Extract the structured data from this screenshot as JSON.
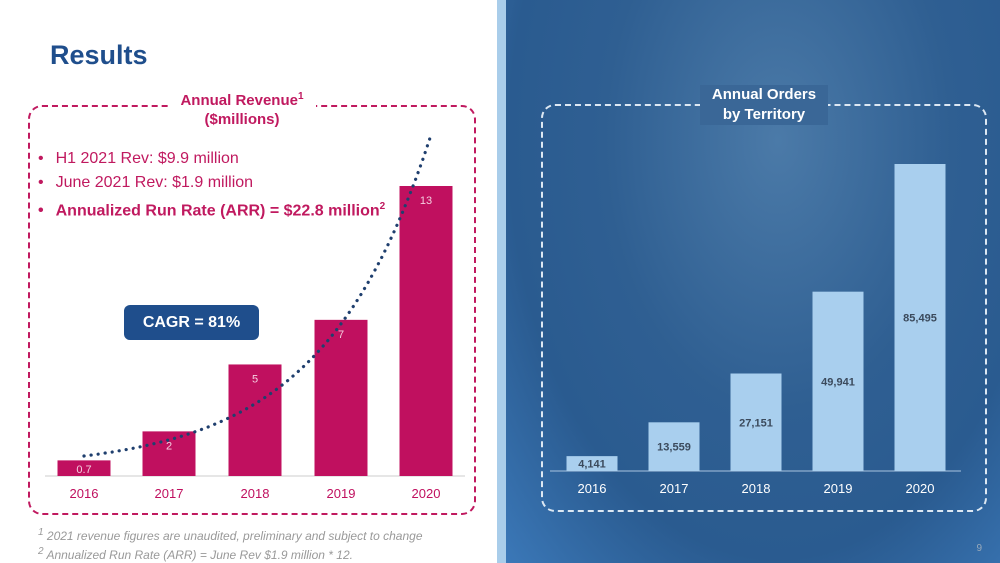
{
  "title": "Results",
  "page_number": "9",
  "revenue_box": {
    "title": "Annual Revenue",
    "title_sup": "1",
    "subtitle": "($millions)",
    "bullets": [
      "H1 2021 Rev: $9.9 million",
      "June 2021 Rev: $1.9 million"
    ],
    "bold_bullet": "Annualized Run Rate (ARR) = $22.8 million",
    "bold_bullet_sup": "2",
    "cagr": "CAGR = 81%"
  },
  "orders_box": {
    "title_line1": "Annual Orders",
    "title_line2": "by Territory"
  },
  "footnotes": [
    "2021 revenue figures are unaudited, preliminary and subject to change",
    "Annualized Run Rate (ARR) = June Rev $1.9 million * 12."
  ],
  "footnote_marks": [
    "1",
    "2"
  ],
  "colors": {
    "revenue_bar": "#c0105f",
    "orders_bar": "#a9cfee",
    "title": "#1f4e8c",
    "trend": "#1f3f6e"
  },
  "chart_data": [
    {
      "type": "bar",
      "categories": [
        "2016",
        "2017",
        "2018",
        "2019",
        "2020"
      ],
      "values": [
        0.7,
        2,
        5,
        7,
        13
      ],
      "data_labels": [
        "0.7",
        "2",
        "5",
        "7",
        "13"
      ],
      "trendline": "exponential, dotted",
      "grid": false
    },
    {
      "type": "bar",
      "categories": [
        "2016",
        "2017",
        "2018",
        "2019",
        "2020"
      ],
      "values": [
        4141,
        13559,
        27151,
        49941,
        85495
      ],
      "data_labels": [
        "4,141",
        "13,559",
        "27,151",
        "49,941",
        "85,495"
      ],
      "grid": false
    }
  ]
}
